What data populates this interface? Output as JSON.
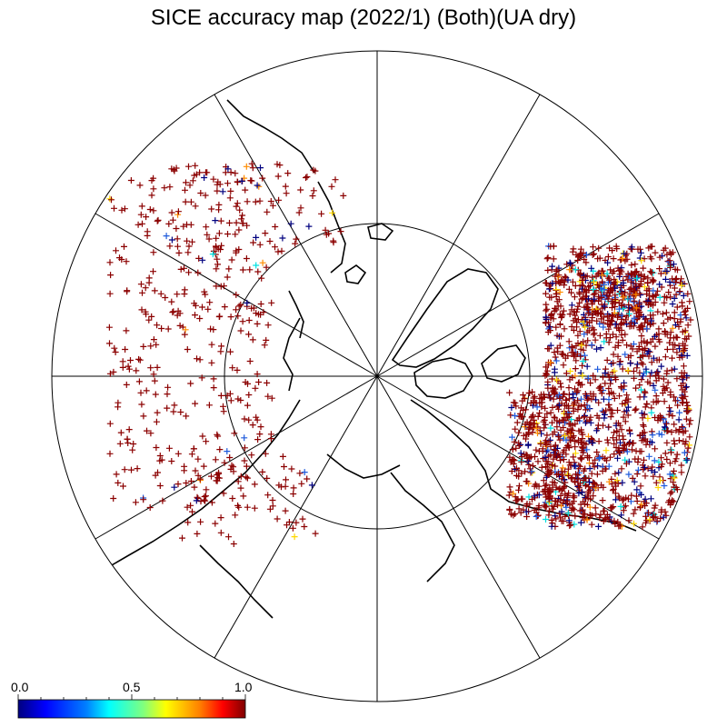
{
  "title": "SICE accuracy map (2022/1) (Both)(UA dry)",
  "colorbar": {
    "tick_labels": [
      "0.0",
      "0.5",
      "1.0"
    ],
    "min": 0.0,
    "max": 1.0,
    "minor_ticks": 10,
    "colormap": [
      "#00007f",
      "#0000ff",
      "#007fff",
      "#00ffff",
      "#7fff7f",
      "#ffff00",
      "#ff7f00",
      "#ff0000",
      "#7f0000"
    ]
  },
  "map": {
    "projection": "north-polar-stereographic",
    "meridian_lines": 12,
    "inner_latitude_circles": 1,
    "marker": "plus",
    "colors": {
      "high": "#8b0000",
      "low": "#00007f",
      "mid_blue": "#1e5adc",
      "cyan": "#00e0e0",
      "yellow": "#ffd700",
      "orange": "#ff8c00"
    }
  }
}
